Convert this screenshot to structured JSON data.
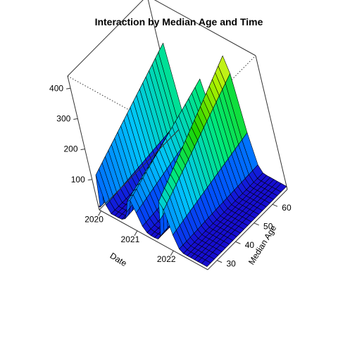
{
  "chart_data": {
    "type": "surface3d",
    "title": "Interaction by Median Age and Time",
    "xlabel": "Date",
    "ylabel": "Median Age",
    "zlabel": "",
    "xlim": [
      2019.95,
      2022.95
    ],
    "ylim": [
      25,
      68
    ],
    "zlim": [
      0,
      440
    ],
    "x_ticks": [
      2020,
      2021,
      2022
    ],
    "y_ticks": [
      30,
      40,
      50,
      60
    ],
    "z_ticks": [
      100,
      200,
      300,
      400
    ],
    "x_tick_labels": [
      "2020",
      "2021",
      "2022"
    ],
    "y_tick_labels": [
      "30",
      "40",
      "50",
      "60"
    ],
    "z_tick_labels": [
      "100",
      "200",
      "300",
      "400"
    ],
    "colormap": [
      "#1a00c8",
      "#0055ff",
      "#00c3ff",
      "#00e87a",
      "#1fd400",
      "#aaf000",
      "#e6f23a",
      "#f0c86e"
    ],
    "grid": false,
    "box": true,
    "x_grid": [
      2019.95,
      2020.0,
      2020.1,
      2020.2,
      2020.3,
      2020.4,
      2020.5,
      2020.6,
      2020.7,
      2020.8,
      2020.9,
      2021.0,
      2021.1,
      2021.2,
      2021.3,
      2021.4,
      2021.5,
      2021.6,
      2021.7,
      2021.8,
      2021.9,
      2022.0,
      2022.1,
      2022.2,
      2022.3,
      2022.4,
      2022.5,
      2022.6,
      2022.7,
      2022.8,
      2022.95
    ],
    "y_grid": [
      25,
      27,
      29,
      31,
      33,
      35,
      37,
      39,
      41,
      43,
      45,
      47,
      49,
      51,
      53,
      55,
      57,
      59,
      61,
      63,
      65,
      68
    ],
    "ridges": [
      {
        "x": 2020.12,
        "amp": 0.85,
        "width": 0.06
      },
      {
        "x": 2020.97,
        "amp": 0.62,
        "width": 0.18
      },
      {
        "x": 2021.93,
        "amp": 1.0,
        "width": 0.16
      }
    ],
    "base_level": 10,
    "age_scale_low": 150,
    "age_scale_slope": 5.2
  }
}
